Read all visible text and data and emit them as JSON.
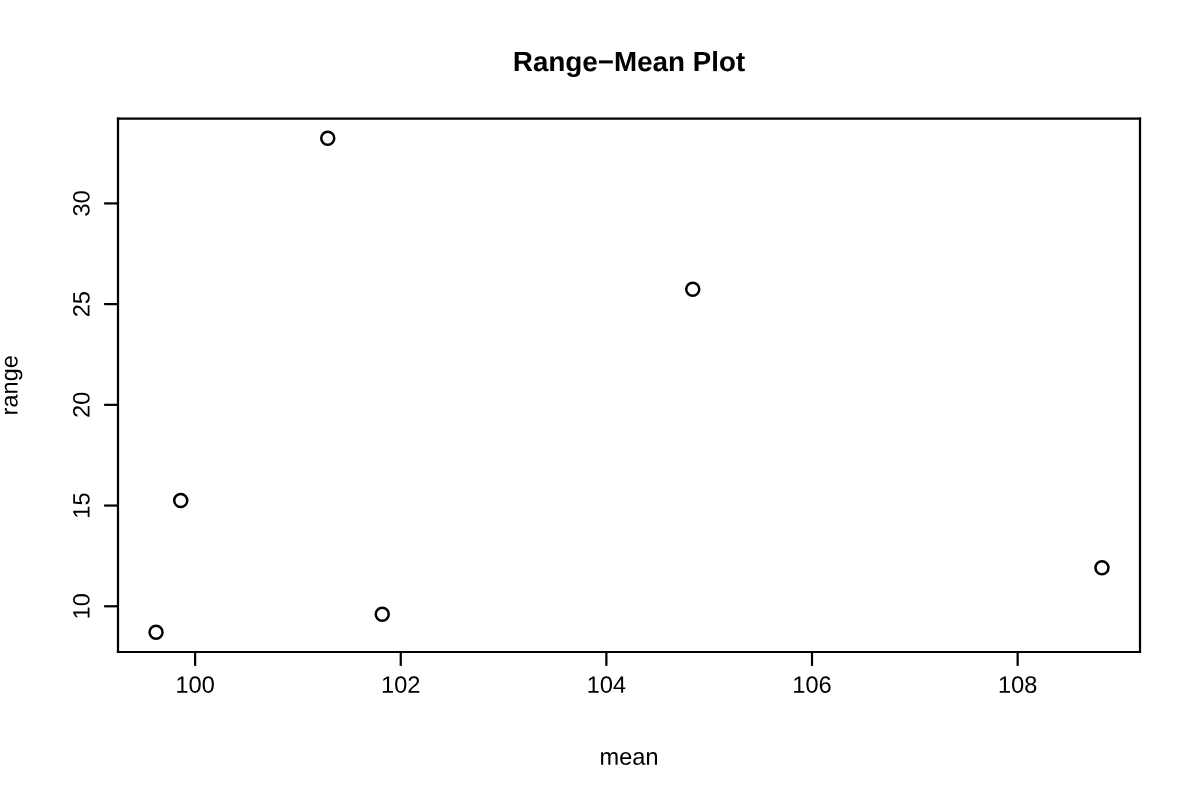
{
  "chart_data": {
    "type": "scatter",
    "title": "Range−Mean Plot",
    "xlabel": "mean",
    "ylabel": "range",
    "x": [
      99.62,
      99.86,
      101.29,
      101.82,
      104.84,
      108.82
    ],
    "values": [
      8.71,
      15.25,
      33.23,
      9.6,
      25.74,
      11.91
    ],
    "color": "#000000",
    "marker": "circle",
    "grid": false,
    "legend": false,
    "xlim": [
      99.25,
      109.19
    ],
    "ylim": [
      7.73,
      34.21
    ],
    "xticks": [
      100,
      102,
      104,
      106,
      108
    ],
    "yticks": [
      10,
      15,
      20,
      25,
      30
    ]
  }
}
